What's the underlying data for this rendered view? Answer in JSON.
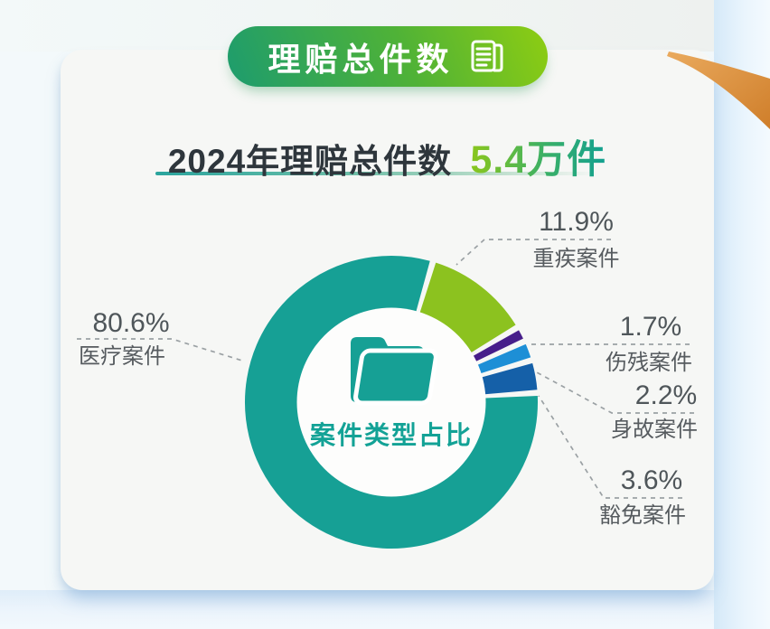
{
  "header": {
    "badge_label": "理赔总件数",
    "badge_icon": "document-lines-icon"
  },
  "title": {
    "prefix": "2024年理赔总件数",
    "highlight": "5.4万件"
  },
  "colors": {
    "brand_green": "#8CC21F",
    "brand_teal": "#14A195",
    "pill_gradient_start": "#1D9C6E",
    "pill_gradient_end": "#8ECD12",
    "ribbon_orange": "#D07E2A",
    "label_gray": "#54595D"
  },
  "chart_data": {
    "type": "pie",
    "donut": true,
    "title": "案件类型占比",
    "center_label": "案件类型占比",
    "center_icon": "folder-icon",
    "unit": "%",
    "start_angle_deg": 16.5,
    "gap_deg": 2.4,
    "series": [
      {
        "name": "重疾案件",
        "value": 11.9,
        "pct_label": "11.9%",
        "color": "#8CC21F"
      },
      {
        "name": "伤残案件",
        "value": 1.7,
        "pct_label": "1.7%",
        "color": "#471E8A"
      },
      {
        "name": "身故案件",
        "value": 2.2,
        "pct_label": "2.2%",
        "color": "#1D8FD6"
      },
      {
        "name": "豁免案件",
        "value": 3.6,
        "pct_label": "3.6%",
        "color": "#1560A8"
      },
      {
        "name": "医疗案件",
        "value": 80.6,
        "pct_label": "80.6%",
        "color": "#16A095"
      }
    ]
  }
}
